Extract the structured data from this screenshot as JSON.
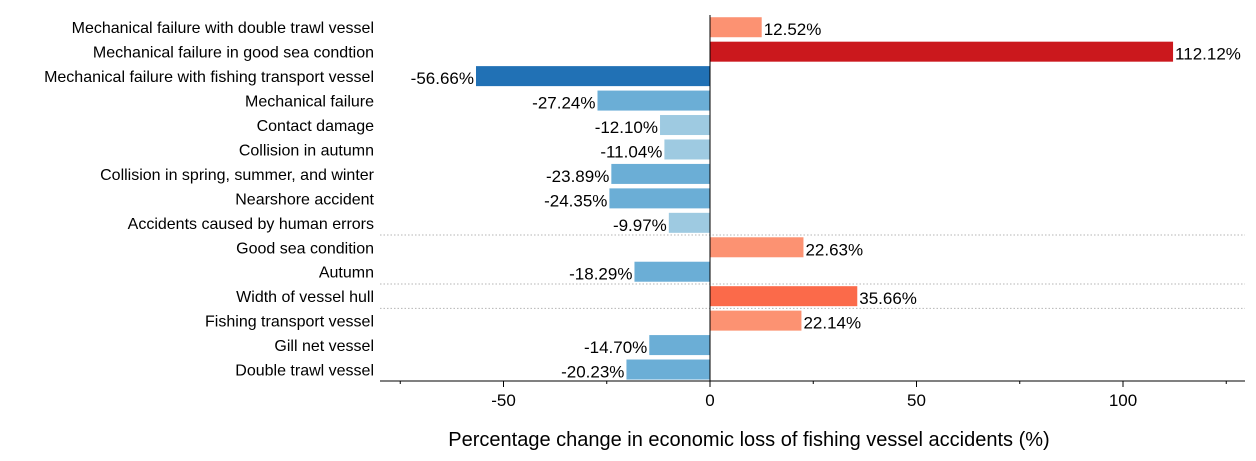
{
  "chart_data": {
    "type": "bar",
    "orientation": "horizontal",
    "categories": [
      "Mechanical failure with double trawl vessel",
      "Mechanical failure in good sea condtion",
      "Mechanical failure with fishing transport vessel",
      "Mechanical failure",
      "Contact damage",
      "Collision in autumn",
      "Collision in spring, summer, and winter",
      "Nearshore accident",
      "Accidents caused by human errors",
      "Good sea condition",
      "Autumn",
      "Width of vessel hull",
      "Fishing transport vessel",
      "Gill net vessel",
      "Double trawl vessel"
    ],
    "values": [
      12.52,
      112.12,
      -56.66,
      -27.24,
      -12.1,
      -11.04,
      -23.89,
      -24.35,
      -9.97,
      22.63,
      -18.29,
      35.66,
      22.14,
      -14.7,
      -20.23
    ],
    "value_labels": [
      "12.52%",
      "112.12%",
      "-56.66%",
      "-27.24%",
      "-12.10%",
      "-11.04%",
      "-23.89%",
      "-24.35%",
      "-9.97%",
      "22.63%",
      "-18.29%",
      "35.66%",
      "22.14%",
      "-14.70%",
      "-20.23%"
    ],
    "bar_colors": [
      "#fc9272",
      "#cb181d",
      "#2171b5",
      "#6baed6",
      "#9ecae1",
      "#9ecae1",
      "#6baed6",
      "#6baed6",
      "#9ecae1",
      "#fc9272",
      "#6baed6",
      "#fb6a4a",
      "#fc9272",
      "#6baed6",
      "#6baed6"
    ],
    "title": "",
    "xlabel": "Percentage change in economic loss of fishing vessel accidents (%)",
    "ylabel": "",
    "xlim": [
      -80,
      130
    ],
    "xticks": [
      -50,
      0,
      50,
      100
    ],
    "xtick_labels": [
      "-50",
      "0",
      "50",
      "100"
    ],
    "group_separators_after_index": [
      8,
      10,
      11
    ],
    "grid": false,
    "legend": "none"
  }
}
